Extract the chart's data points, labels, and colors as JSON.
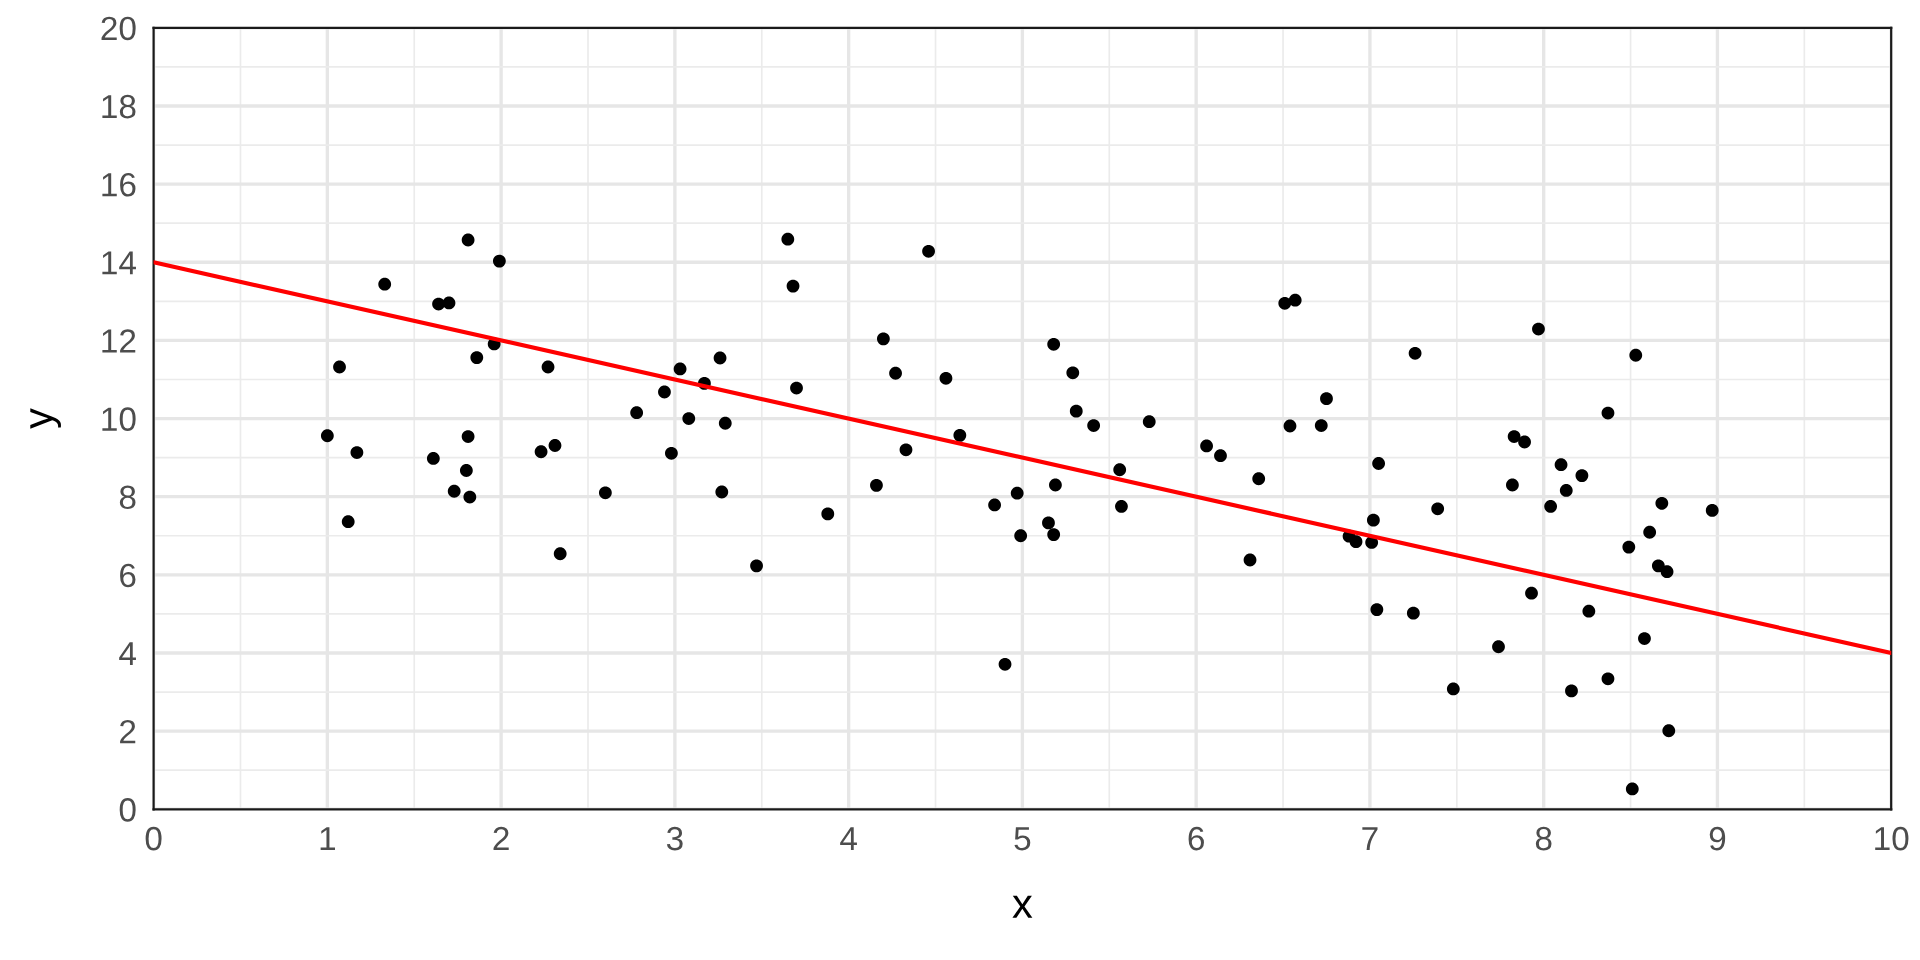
{
  "chart_data": {
    "type": "scatter",
    "xlabel": "x",
    "ylabel": "y",
    "xlim": [
      0,
      10
    ],
    "ylim": [
      0,
      20
    ],
    "xticks": [
      0,
      1,
      2,
      3,
      4,
      5,
      6,
      7,
      8,
      9,
      10
    ],
    "yticks": [
      0,
      2,
      4,
      6,
      8,
      10,
      12,
      14,
      16,
      18,
      20
    ],
    "grid": true,
    "series": [
      {
        "color": "#000000",
        "marker": "circle",
        "x": [
          1.81,
          1.99,
          1.33,
          1.64,
          1.7,
          1.96,
          1.86,
          1.07,
          2.27,
          1.0,
          1.81,
          1.17,
          2.23,
          2.31,
          1.61,
          1.8,
          1.73,
          1.82,
          2.6,
          1.12,
          2.34,
          3.65,
          4.46,
          3.68,
          4.2,
          5.18,
          3.26,
          3.03,
          4.27,
          4.56,
          3.17,
          3.7,
          2.94,
          2.78,
          3.08,
          3.29,
          4.64,
          4.33,
          2.98,
          3.27,
          4.16,
          3.88,
          3.47,
          4.84,
          4.97,
          5.15,
          4.99,
          5.18,
          5.19,
          4.9,
          5.29,
          5.31,
          5.41,
          5.73,
          5.56,
          5.57,
          6.51,
          6.57,
          7.26,
          6.75,
          6.54,
          6.72,
          6.06,
          6.14,
          6.36,
          7.05,
          6.31,
          7.39,
          7.02,
          6.88,
          6.92,
          7.01,
          7.04,
          7.25,
          7.74,
          7.48,
          7.97,
          8.53,
          8.37,
          7.83,
          7.89,
          8.1,
          8.22,
          7.82,
          8.13,
          8.04,
          8.68,
          8.97,
          8.61,
          8.49,
          8.66,
          8.71,
          7.93,
          8.26,
          8.58,
          8.37,
          8.16,
          8.72,
          8.51
        ],
        "values": [
          14.57,
          14.03,
          13.44,
          12.93,
          12.96,
          11.91,
          11.56,
          11.32,
          11.32,
          9.56,
          9.54,
          9.13,
          9.15,
          9.31,
          8.98,
          8.67,
          8.14,
          7.99,
          8.1,
          7.36,
          6.54,
          14.59,
          14.28,
          13.39,
          12.04,
          11.9,
          11.55,
          11.27,
          11.16,
          11.03,
          10.9,
          10.78,
          10.68,
          10.15,
          10.0,
          9.88,
          9.57,
          9.2,
          9.11,
          8.12,
          8.29,
          7.56,
          6.23,
          7.79,
          8.09,
          7.33,
          7.0,
          7.03,
          8.3,
          3.71,
          11.17,
          10.19,
          9.82,
          9.92,
          8.69,
          7.75,
          12.95,
          13.03,
          11.67,
          10.51,
          9.81,
          9.82,
          9.3,
          9.05,
          8.46,
          8.85,
          6.38,
          7.69,
          7.4,
          6.99,
          6.85,
          6.83,
          5.11,
          5.02,
          4.16,
          3.08,
          12.29,
          11.62,
          10.14,
          9.54,
          9.4,
          8.82,
          8.54,
          8.3,
          8.16,
          7.75,
          7.83,
          7.65,
          7.09,
          6.71,
          6.23,
          6.08,
          5.53,
          5.07,
          4.37,
          3.34,
          3.03,
          2.01,
          0.52
        ]
      },
      {
        "type": "line",
        "color": "#ff0000",
        "marker": "none",
        "line_style": "solid",
        "x": [
          0,
          10
        ],
        "values": [
          14,
          4
        ]
      }
    ]
  }
}
